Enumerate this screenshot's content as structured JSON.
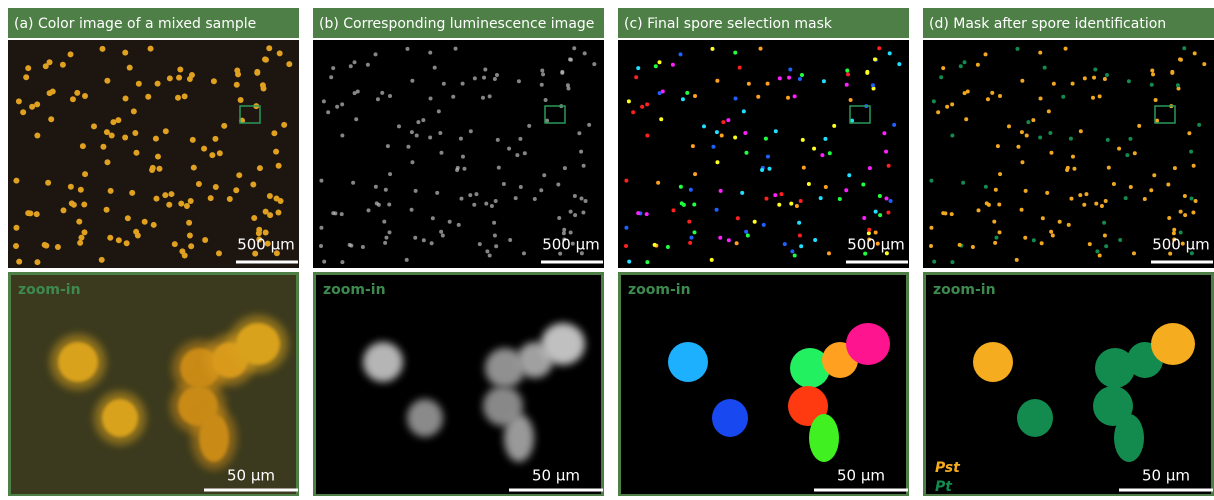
{
  "panels": [
    {
      "title": "(a) Color image of a mixed sample",
      "scale_top": "500 µm",
      "zoom_label": "zoom-in",
      "scale_bottom": "50 µm"
    },
    {
      "title": "(b) Corresponding luminescence image",
      "scale_top": "500 µm",
      "zoom_label": "zoom-in",
      "scale_bottom": "50 µm"
    },
    {
      "title": "(c) Final spore selection mask",
      "scale_top": "500 µm",
      "zoom_label": "zoom-in",
      "scale_bottom": "50 µm"
    },
    {
      "title": "(d) Mask after spore identification",
      "scale_top": "500 µm",
      "zoom_label": "zoom-in",
      "scale_bottom": "50 µm"
    }
  ],
  "legend": [
    "Pst",
    "Pt"
  ]
}
